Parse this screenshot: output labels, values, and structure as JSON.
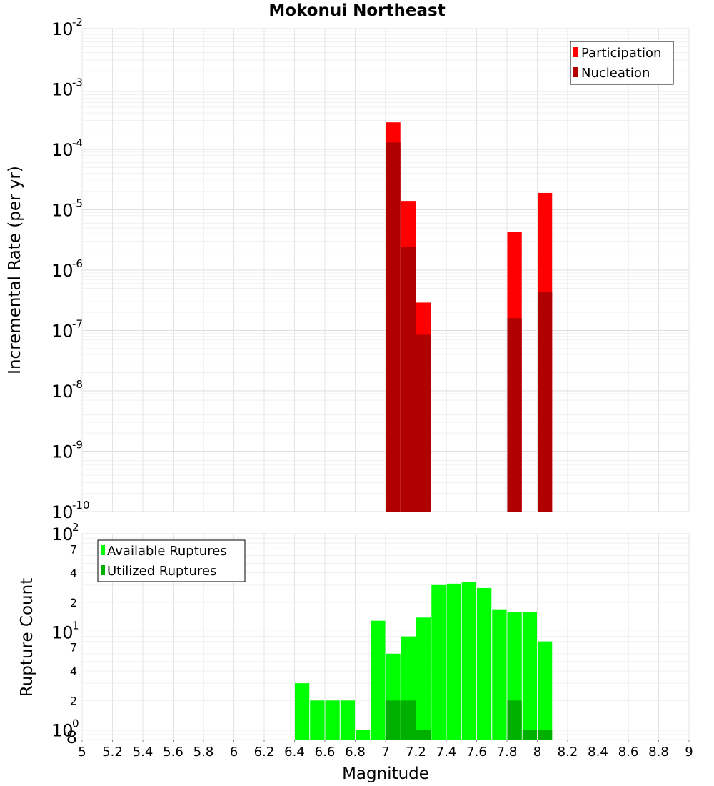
{
  "chart_data": [
    {
      "type": "bar",
      "title": "Mokonui Northeast",
      "xlabel": "Magnitude",
      "ylabel": "Incremental Rate (per yr)",
      "yscale": "log",
      "ylim": [
        1e-10,
        0.01
      ],
      "xlim": [
        5,
        9
      ],
      "y_ticks": [
        {
          "base": "10",
          "exp": "-10",
          "value": 1e-10
        },
        {
          "base": "10",
          "exp": "-9",
          "value": 1e-09
        },
        {
          "base": "10",
          "exp": "-8",
          "value": 1e-08
        },
        {
          "base": "10",
          "exp": "-7",
          "value": 1e-07
        },
        {
          "base": "10",
          "exp": "-6",
          "value": 1e-06
        },
        {
          "base": "10",
          "exp": "-5",
          "value": 1e-05
        },
        {
          "base": "10",
          "exp": "-4",
          "value": 0.0001
        },
        {
          "base": "10",
          "exp": "-3",
          "value": 0.001
        },
        {
          "base": "10",
          "exp": "-2",
          "value": 0.01
        }
      ],
      "legend": {
        "position": "top-right",
        "entries": [
          "Participation",
          "Nucleation"
        ]
      },
      "series": [
        {
          "name": "Participation",
          "color": "#ff0000",
          "x": [
            7.05,
            7.15,
            7.25,
            7.85,
            8.05
          ],
          "values": [
            0.00028,
            1.4e-05,
            2.9e-07,
            4.3e-06,
            1.9e-05
          ]
        },
        {
          "name": "Nucleation",
          "color": "#b00000",
          "x": [
            7.05,
            7.15,
            7.25,
            7.85,
            8.05
          ],
          "values": [
            0.00013,
            2.4e-06,
            8.5e-08,
            1.6e-07,
            4.3e-07
          ]
        }
      ]
    },
    {
      "type": "bar",
      "xlabel": "Magnitude",
      "ylabel": "Rupture Count",
      "yscale": "log",
      "ylim": [
        0.8,
        100
      ],
      "xlim": [
        5,
        9
      ],
      "x_ticks": [
        "5",
        "5.2",
        "5.4",
        "5.6",
        "5.8",
        "6",
        "6.2",
        "6.4",
        "6.6",
        "6.8",
        "7",
        "7.2",
        "7.4",
        "7.6",
        "7.8",
        "8",
        "8.2",
        "8.4",
        "8.6",
        "8.8",
        "9"
      ],
      "y_major_ticks": [
        {
          "base": "10",
          "exp": "0",
          "value": 1
        },
        {
          "base": "10",
          "exp": "1",
          "value": 10
        },
        {
          "base": "10",
          "exp": "2",
          "value": 100
        }
      ],
      "y_minor_ticks": [
        {
          "label": "8",
          "value": 0.8
        },
        {
          "label": "2",
          "value": 2
        },
        {
          "label": "4",
          "value": 4
        },
        {
          "label": "7",
          "value": 7
        },
        {
          "label": "2",
          "value": 20
        },
        {
          "label": "4",
          "value": 40
        },
        {
          "label": "7",
          "value": 70
        }
      ],
      "legend": {
        "position": "top-left",
        "entries": [
          "Available Ruptures",
          "Utilized Ruptures"
        ]
      },
      "series": [
        {
          "name": "Available Ruptures",
          "color": "#00ff00",
          "x": [
            6.45,
            6.55,
            6.65,
            6.75,
            6.85,
            6.95,
            7.05,
            7.15,
            7.25,
            7.35,
            7.45,
            7.55,
            7.65,
            7.75,
            7.85,
            7.95,
            8.05
          ],
          "values": [
            3,
            2,
            2,
            2,
            1,
            13,
            6,
            9,
            14,
            30,
            31,
            32,
            28,
            17,
            16,
            16,
            8
          ]
        },
        {
          "name": "Utilized Ruptures",
          "color": "#00b000",
          "x": [
            7.05,
            7.15,
            7.25,
            7.85,
            7.95,
            8.05
          ],
          "values": [
            2,
            2,
            1,
            2,
            1,
            1
          ]
        }
      ]
    }
  ]
}
